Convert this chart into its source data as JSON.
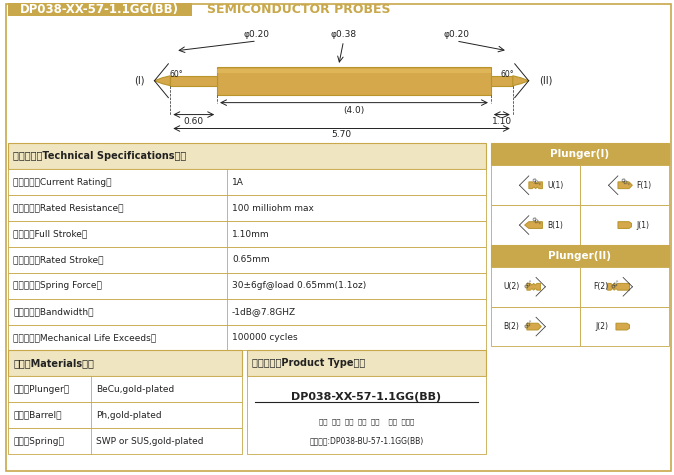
{
  "title_box_text": "DP038-XX-57-1.1GG(BB)",
  "title_box_color": "#C8A84B",
  "title_right_text": "SEMICONDUCTOR PROBES",
  "background_color": "#FFFFFF",
  "gold_color": "#C8A84B",
  "gold_fill": "#D4A84B",
  "dark_gold": "#B8942A",
  "specs": [
    [
      "技术要求（Technical Specifications）：",
      ""
    ],
    [
      "额定电流（Current Rating）",
      "1A"
    ],
    [
      "额定电阻（Rated Resistance）",
      "100 milliohm max"
    ],
    [
      "满行程（Full Stroke）",
      "1.10mm"
    ],
    [
      "额定行程（Rated Stroke）",
      "0.65mm"
    ],
    [
      "额定弹力（Spring Force）",
      "30±6gf@load 0.65mm(1.1oz)"
    ],
    [
      "频率带宽（Bandwidth）",
      "-1dB@7.8GHZ"
    ],
    [
      "测试寿命（Mechanical Life Exceeds）",
      "100000 cycles"
    ]
  ],
  "materials": [
    [
      "针头（Plunger）",
      "BeCu,gold-plated"
    ],
    [
      "针管（Barrel）",
      "Ph,gold-plated"
    ],
    [
      "弹簧（Spring）",
      "SWP or SUS,gold-plated"
    ]
  ],
  "product_type_title": "成品型号（Product Type）：",
  "product_code": "DP038-XX-57-1.1GG(BB)",
  "product_labels": "系列  规格  头型  总长  弹力    镀金  针头规",
  "product_example": "订购举例:DP038-BU-57-1.1GG(BB)",
  "plunger1_title": "Plunger(I)",
  "plunger2_title": "Plunger(II)",
  "plunger_labels_1": [
    "U(1)",
    "F(1)",
    "B(1)",
    "J(1)"
  ],
  "plunger_labels_2": [
    "U(2)",
    "F(2)",
    "B(2)",
    "J(2)"
  ]
}
